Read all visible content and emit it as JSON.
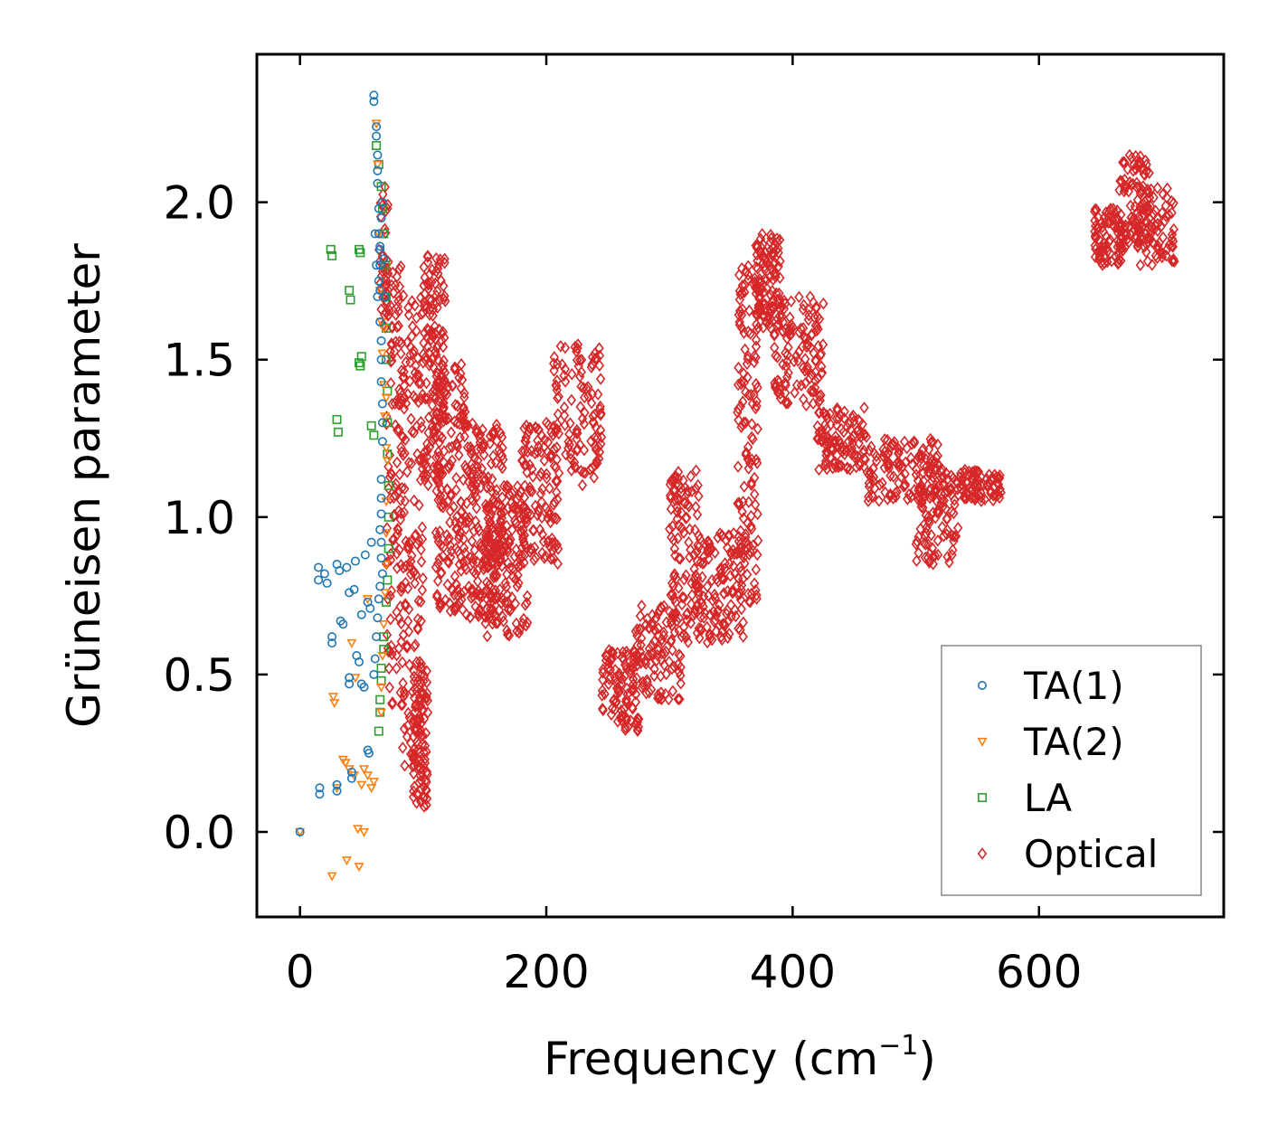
{
  "chart_data": {
    "type": "scatter",
    "title": "",
    "xlabel": "Frequency (cm",
    "xlabel_sup": "−1",
    "xlabel_end": ")",
    "ylabel": "Grüneisen parameter",
    "xlim": [
      -35,
      750
    ],
    "ylim": [
      -0.27,
      2.47
    ],
    "xticks": [
      0,
      200,
      400,
      600
    ],
    "xtick_labels": [
      "0",
      "200",
      "400",
      "600"
    ],
    "yticks": [
      0.0,
      0.5,
      1.0,
      1.5,
      2.0
    ],
    "ytick_labels": [
      "0.0",
      "0.5",
      "1.0",
      "1.5",
      "2.0"
    ],
    "legend_position": "bottom-right",
    "series": [
      {
        "name": "TA(1)",
        "color": "#1f77b4",
        "marker": "circle",
        "points": [
          [
            0,
            0.0
          ],
          [
            15,
            0.84
          ],
          [
            15,
            0.8
          ],
          [
            16,
            0.14
          ],
          [
            16,
            0.12
          ],
          [
            20,
            0.82
          ],
          [
            22,
            0.79
          ],
          [
            26,
            0.62
          ],
          [
            26,
            0.6
          ],
          [
            30,
            0.85
          ],
          [
            30,
            0.15
          ],
          [
            30,
            0.13
          ],
          [
            32,
            0.83
          ],
          [
            33,
            0.67
          ],
          [
            35,
            0.66
          ],
          [
            38,
            0.84
          ],
          [
            40,
            0.76
          ],
          [
            40,
            0.49
          ],
          [
            40,
            0.47
          ],
          [
            42,
            0.19
          ],
          [
            42,
            0.17
          ],
          [
            44,
            0.77
          ],
          [
            45,
            0.86
          ],
          [
            46,
            0.56
          ],
          [
            48,
            0.54
          ],
          [
            50,
            0.69
          ],
          [
            50,
            0.47
          ],
          [
            52,
            0.46
          ],
          [
            53,
            0.88
          ],
          [
            55,
            0.73
          ],
          [
            55,
            0.26
          ],
          [
            56,
            0.25
          ],
          [
            57,
            0.71
          ],
          [
            58,
            0.92
          ],
          [
            60,
            2.34
          ],
          [
            60,
            2.32
          ],
          [
            62,
            2.24
          ],
          [
            62,
            2.21
          ],
          [
            63,
            2.15
          ],
          [
            63,
            2.1
          ],
          [
            63,
            2.06
          ],
          [
            64,
            1.98
          ],
          [
            64,
            1.9
          ],
          [
            65,
            1.86
          ],
          [
            65,
            1.8
          ],
          [
            65,
            1.72
          ],
          [
            65,
            1.62
          ],
          [
            66,
            1.56
          ],
          [
            66,
            1.5
          ],
          [
            66,
            1.43
          ],
          [
            67,
            1.36
          ],
          [
            67,
            1.3
          ],
          [
            67,
            1.24
          ],
          [
            66,
            1.12
          ],
          [
            66,
            1.06
          ],
          [
            66,
            1.01
          ],
          [
            65,
            0.96
          ],
          [
            66,
            0.92
          ],
          [
            66,
            0.87
          ],
          [
            67,
            0.82
          ],
          [
            65,
            0.78
          ],
          [
            64,
            0.74
          ],
          [
            63,
            0.68
          ],
          [
            62,
            0.62
          ],
          [
            61,
            0.55
          ],
          [
            60,
            0.5
          ],
          [
            61,
            1.9
          ],
          [
            62,
            1.8
          ],
          [
            63,
            1.7
          ],
          [
            64,
            1.75
          ],
          [
            65,
            1.85
          ],
          [
            66,
            1.95
          ],
          [
            67,
            2.0
          ],
          [
            68,
            1.82
          ],
          [
            69,
            1.7
          ]
        ]
      },
      {
        "name": "TA(2)",
        "color": "#ff7f0e",
        "marker": "triangle-down",
        "points": [
          [
            0,
            0.0
          ],
          [
            26,
            -0.14
          ],
          [
            27,
            0.43
          ],
          [
            28,
            0.41
          ],
          [
            30,
            0.14
          ],
          [
            35,
            0.23
          ],
          [
            37,
            0.22
          ],
          [
            38,
            -0.09
          ],
          [
            40,
            0.2
          ],
          [
            42,
            0.6
          ],
          [
            44,
            0.18
          ],
          [
            45,
            0.49
          ],
          [
            47,
            0.01
          ],
          [
            48,
            -0.11
          ],
          [
            50,
            0.15
          ],
          [
            52,
            0.2
          ],
          [
            52,
            0.0
          ],
          [
            55,
            0.74
          ],
          [
            55,
            0.18
          ],
          [
            58,
            0.14
          ],
          [
            60,
            0.16
          ],
          [
            62,
            2.25
          ],
          [
            63,
            2.12
          ],
          [
            64,
            1.9
          ],
          [
            65,
            1.72
          ],
          [
            66,
            1.62
          ],
          [
            67,
            1.52
          ],
          [
            68,
            1.42
          ],
          [
            69,
            1.32
          ],
          [
            70,
            1.22
          ],
          [
            70,
            1.05
          ],
          [
            70,
            0.95
          ],
          [
            70,
            0.85
          ],
          [
            69,
            0.76
          ],
          [
            68,
            0.66
          ],
          [
            67,
            0.56
          ],
          [
            66,
            0.46
          ],
          [
            66,
            0.38
          ],
          [
            68,
            1.6
          ],
          [
            70,
            1.38
          ],
          [
            71,
            1.18
          ]
        ]
      },
      {
        "name": "LA",
        "color": "#2ca02c",
        "marker": "square",
        "points": [
          [
            25,
            1.85
          ],
          [
            26,
            1.83
          ],
          [
            40,
            1.72
          ],
          [
            41,
            1.69
          ],
          [
            48,
            1.85
          ],
          [
            49,
            1.84
          ],
          [
            48,
            1.49
          ],
          [
            49,
            1.48
          ],
          [
            50,
            1.51
          ],
          [
            30,
            1.31
          ],
          [
            31,
            1.27
          ],
          [
            58,
            1.29
          ],
          [
            60,
            1.26
          ],
          [
            62,
            2.18
          ],
          [
            64,
            2.12
          ],
          [
            66,
            2.05
          ],
          [
            67,
            1.98
          ],
          [
            68,
            1.9
          ],
          [
            69,
            1.8
          ],
          [
            70,
            1.7
          ],
          [
            70,
            1.6
          ],
          [
            70,
            1.5
          ],
          [
            71,
            1.4
          ],
          [
            71,
            1.3
          ],
          [
            71,
            1.2
          ],
          [
            72,
            1.1
          ],
          [
            72,
            1.0
          ],
          [
            72,
            0.9
          ],
          [
            71,
            0.8
          ],
          [
            70,
            0.73
          ],
          [
            68,
            0.62
          ],
          [
            66,
            0.52
          ],
          [
            65,
            0.42
          ],
          [
            64,
            0.32
          ],
          [
            65,
            0.38
          ],
          [
            66,
            0.48
          ],
          [
            68,
            0.58
          ]
        ]
      },
      {
        "name": "Optical",
        "color": "#d62728",
        "marker": "diamond",
        "clusters": [
          {
            "x_range": [
              64,
              72
            ],
            "y_range": [
              1.6,
              2.05
            ],
            "n": 40
          },
          {
            "x_range": [
              70,
              85
            ],
            "y_range": [
              0.4,
              1.8
            ],
            "n": 120
          },
          {
            "x_range": [
              82,
              100
            ],
            "y_range": [
              0.2,
              1.7
            ],
            "n": 150
          },
          {
            "x_range": [
              92,
              104
            ],
            "y_range": [
              0.08,
              0.55
            ],
            "n": 90
          },
          {
            "x_range": [
              100,
              118
            ],
            "y_range": [
              1.1,
              1.85
            ],
            "n": 150
          },
          {
            "x_range": [
              110,
              135
            ],
            "y_range": [
              0.7,
              1.5
            ],
            "n": 170
          },
          {
            "x_range": [
              135,
              165
            ],
            "y_range": [
              0.68,
              1.3
            ],
            "n": 180
          },
          {
            "x_range": [
              150,
              185
            ],
            "y_range": [
              0.62,
              1.1
            ],
            "n": 170
          },
          {
            "x_range": [
              180,
              210
            ],
            "y_range": [
              0.85,
              1.3
            ],
            "n": 120
          },
          {
            "x_range": [
              205,
              245
            ],
            "y_range": [
              1.1,
              1.55
            ],
            "n": 110
          },
          {
            "x_range": [
              245,
              275
            ],
            "y_range": [
              0.32,
              0.58
            ],
            "n": 100
          },
          {
            "x_range": [
              270,
              310
            ],
            "y_range": [
              0.42,
              0.72
            ],
            "n": 100
          },
          {
            "x_range": [
              300,
              325
            ],
            "y_range": [
              0.6,
              1.15
            ],
            "n": 110
          },
          {
            "x_range": [
              320,
              360
            ],
            "y_range": [
              0.6,
              0.95
            ],
            "n": 130
          },
          {
            "x_range": [
              355,
              372
            ],
            "y_range": [
              0.7,
              1.8
            ],
            "n": 130
          },
          {
            "x_range": [
              370,
              390
            ],
            "y_range": [
              1.6,
              1.9
            ],
            "n": 110
          },
          {
            "x_range": [
              385,
              425
            ],
            "y_range": [
              1.35,
              1.7
            ],
            "n": 120
          },
          {
            "x_range": [
              420,
              460
            ],
            "y_range": [
              1.15,
              1.35
            ],
            "n": 110
          },
          {
            "x_range": [
              460,
              520
            ],
            "y_range": [
              1.05,
              1.25
            ],
            "n": 130
          },
          {
            "x_range": [
              500,
              535
            ],
            "y_range": [
              0.85,
              1.1
            ],
            "n": 80
          },
          {
            "x_range": [
              520,
              570
            ],
            "y_range": [
              1.05,
              1.15
            ],
            "n": 90
          },
          {
            "x_range": [
              645,
              670
            ],
            "y_range": [
              1.8,
              1.98
            ],
            "n": 80
          },
          {
            "x_range": [
              665,
              690
            ],
            "y_range": [
              1.85,
              2.15
            ],
            "n": 90
          },
          {
            "x_range": [
              680,
              710
            ],
            "y_range": [
              1.8,
              2.05
            ],
            "n": 80
          }
        ]
      }
    ]
  }
}
